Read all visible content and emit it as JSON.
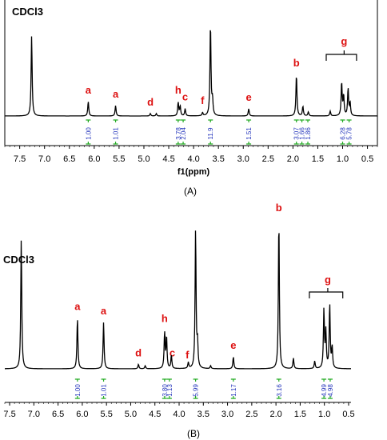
{
  "chart_data": [
    {
      "type": "line",
      "panel_label": "(A)",
      "solvent_label": "CDCl3",
      "xlabel": "f1(ppm)",
      "x_reversed": true,
      "xlim": [
        7.8,
        0.3
      ],
      "x_ticks": [
        "7.5",
        "7.0",
        "6.5",
        "6.0",
        "5.5",
        "5.0",
        "4.5",
        "4.0",
        "3.5",
        "3.0",
        "2.5",
        "2.0",
        "1.5",
        "1.0",
        "0.5"
      ],
      "peaks": [
        {
          "ppm": 7.26,
          "height": 1.0
        },
        {
          "ppm": 6.12,
          "height": 0.18
        },
        {
          "ppm": 5.57,
          "height": 0.13
        },
        {
          "ppm": 4.87,
          "height": 0.03
        },
        {
          "ppm": 4.75,
          "height": 0.03
        },
        {
          "ppm": 4.31,
          "height": 0.17
        },
        {
          "ppm": 4.27,
          "height": 0.12
        },
        {
          "ppm": 4.17,
          "height": 0.09
        },
        {
          "ppm": 3.82,
          "height": 0.04
        },
        {
          "ppm": 3.66,
          "height": 1.16
        },
        {
          "ppm": 3.62,
          "height": 0.19
        },
        {
          "ppm": 2.89,
          "height": 0.09
        },
        {
          "ppm": 1.93,
          "height": 0.52
        },
        {
          "ppm": 1.8,
          "height": 0.12
        },
        {
          "ppm": 1.69,
          "height": 0.05
        },
        {
          "ppm": 1.25,
          "height": 0.06
        },
        {
          "ppm": 1.02,
          "height": 0.42
        },
        {
          "ppm": 0.98,
          "height": 0.25
        },
        {
          "ppm": 0.89,
          "height": 0.34
        },
        {
          "ppm": 0.85,
          "height": 0.16
        }
      ],
      "peak_labels": [
        {
          "text": "a",
          "ppm": 6.12
        },
        {
          "text": "a",
          "ppm": 5.57
        },
        {
          "text": "d",
          "ppm": 4.87
        },
        {
          "text": "h",
          "ppm": 4.31
        },
        {
          "text": "c",
          "ppm": 4.17
        },
        {
          "text": "f",
          "ppm": 3.82
        },
        {
          "text": "e",
          "ppm": 2.89
        },
        {
          "text": "b",
          "ppm": 1.93
        },
        {
          "text": "g",
          "ppm": 0.97,
          "bracket_from": 1.33,
          "bracket_to": 0.72
        }
      ],
      "integrals": [
        {
          "ppm": 6.12,
          "value": "1.00"
        },
        {
          "ppm": 5.57,
          "value": "1.01"
        },
        {
          "ppm": 4.31,
          "value": "3.78"
        },
        {
          "ppm": 4.21,
          "value": "2.04"
        },
        {
          "ppm": 3.66,
          "value": "11.9"
        },
        {
          "ppm": 2.89,
          "value": "1.51"
        },
        {
          "ppm": 1.93,
          "value": "3.07"
        },
        {
          "ppm": 1.82,
          "value": "1.66"
        },
        {
          "ppm": 1.7,
          "value": "1.86"
        },
        {
          "ppm": 1.0,
          "value": "6.28"
        },
        {
          "ppm": 0.87,
          "value": "5.78"
        }
      ]
    },
    {
      "type": "line",
      "panel_label": "(B)",
      "solvent_label": "CDCl3",
      "xlabel": "",
      "x_reversed": true,
      "xlim": [
        7.6,
        0.45
      ],
      "x_ticks": [
        "7.5",
        "7.0",
        "6.5",
        "6.0",
        "5.5",
        "5.0",
        "4.5",
        "4.0",
        "3.5",
        "3.0",
        "2.5",
        "2.0",
        "1.5",
        "1.0",
        "0.5"
      ],
      "peaks": [
        {
          "ppm": 7.26,
          "height": 0.87
        },
        {
          "ppm": 6.1,
          "height": 0.34
        },
        {
          "ppm": 5.56,
          "height": 0.31
        },
        {
          "ppm": 4.84,
          "height": 0.03
        },
        {
          "ppm": 4.7,
          "height": 0.02
        },
        {
          "ppm": 4.3,
          "height": 0.24
        },
        {
          "ppm": 4.26,
          "height": 0.21
        },
        {
          "ppm": 4.16,
          "height": 0.09
        },
        {
          "ppm": 3.81,
          "height": 0.04
        },
        {
          "ppm": 3.66,
          "height": 0.93
        },
        {
          "ppm": 3.62,
          "height": 0.16
        },
        {
          "ppm": 3.35,
          "height": 0.02
        },
        {
          "ppm": 2.88,
          "height": 0.08
        },
        {
          "ppm": 1.94,
          "height": 1.0
        },
        {
          "ppm": 1.64,
          "height": 0.07
        },
        {
          "ppm": 1.2,
          "height": 0.05
        },
        {
          "ppm": 1.01,
          "height": 0.39
        },
        {
          "ppm": 0.97,
          "height": 0.24
        },
        {
          "ppm": 0.89,
          "height": 0.43
        },
        {
          "ppm": 0.84,
          "height": 0.14
        }
      ],
      "peak_labels": [
        {
          "text": "a",
          "ppm": 6.1
        },
        {
          "text": "a",
          "ppm": 5.56
        },
        {
          "text": "d",
          "ppm": 4.84
        },
        {
          "text": "h",
          "ppm": 4.3
        },
        {
          "text": "c",
          "ppm": 4.14
        },
        {
          "text": "f",
          "ppm": 3.83
        },
        {
          "text": "e",
          "ppm": 2.88
        },
        {
          "text": "b",
          "ppm": 1.94
        },
        {
          "text": "g",
          "ppm": 0.93,
          "bracket_from": 1.31,
          "bracket_to": 0.62
        }
      ],
      "integrals": [
        {
          "ppm": 6.1,
          "value": "1.00"
        },
        {
          "ppm": 5.56,
          "value": "1.01"
        },
        {
          "ppm": 4.3,
          "value": "3.80"
        },
        {
          "ppm": 4.2,
          "value": "1.13"
        },
        {
          "ppm": 3.66,
          "value": "5.99"
        },
        {
          "ppm": 2.88,
          "value": "1.17"
        },
        {
          "ppm": 1.94,
          "value": "3.16"
        },
        {
          "ppm": 1.01,
          "value": "4.99"
        },
        {
          "ppm": 0.88,
          "value": "4.98"
        }
      ]
    }
  ],
  "colors": {
    "spectrum": "#000000",
    "peak_label": "#dd1111",
    "integral_text": "#2233bb",
    "integral_mark": "#22aa22"
  }
}
